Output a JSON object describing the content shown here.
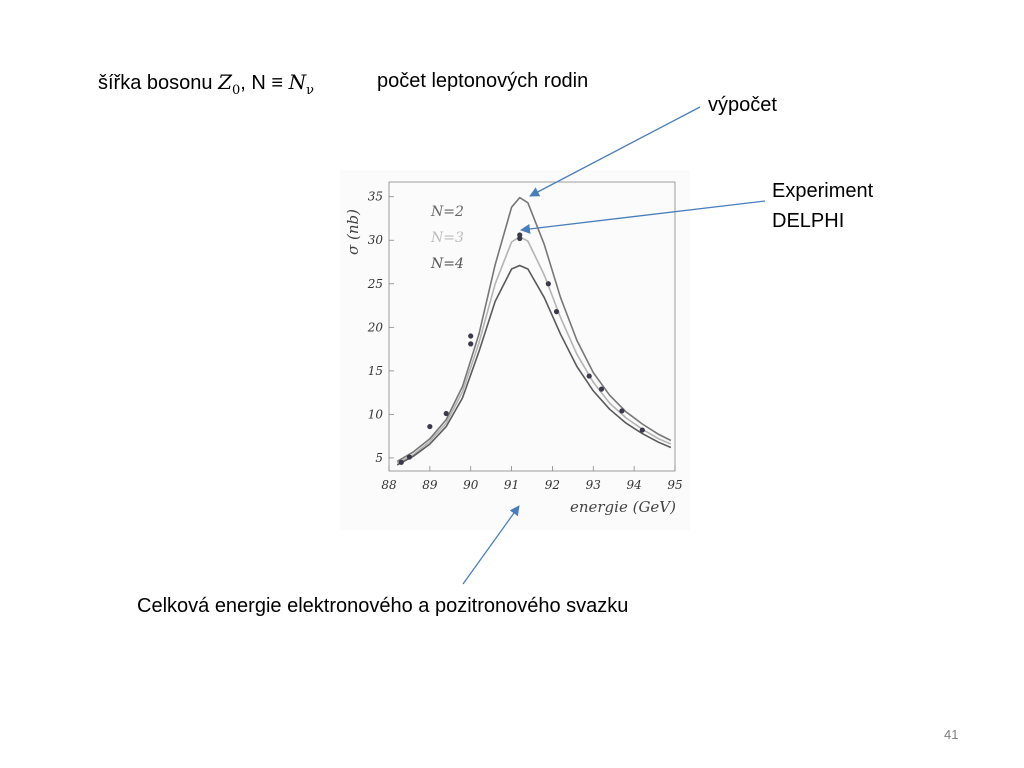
{
  "title": {
    "prefix": "šířka bosonu",
    "z_symbol": "Z",
    "z_sub": "0",
    "equiv": ", N ≡",
    "n_symbol": "N",
    "n_sub": "ν",
    "right": "počet leptonových rodin"
  },
  "labels": {
    "calc": "výpočet",
    "exp_line1": "Experiment",
    "exp_line2": "DELPHI",
    "energy": "Celková energie elektronového a pozitronového svazku"
  },
  "page_number": "41",
  "colors": {
    "arrow": "#4a7ebb",
    "curve": "#6a6a6a",
    "point": "#3a3a4a",
    "axis": "#888888"
  },
  "chart_data": {
    "type": "line",
    "xlabel": "energie (GeV)",
    "ylabel": "σ (nb)",
    "xlim": [
      88,
      95
    ],
    "ylim": [
      3.5,
      36
    ],
    "xticks": [
      88,
      89,
      90,
      91,
      92,
      93,
      94,
      95
    ],
    "yticks": [
      5,
      10,
      15,
      20,
      25,
      30,
      35
    ],
    "legend": [
      "N=2",
      "N=3",
      "N=4"
    ],
    "series": [
      {
        "name": "N=2",
        "x": [
          88.2,
          88.6,
          89.0,
          89.4,
          89.8,
          90.2,
          90.6,
          91.0,
          91.2,
          91.4,
          91.8,
          92.2,
          92.6,
          93.0,
          93.4,
          93.8,
          94.2,
          94.6,
          94.9
        ],
        "y": [
          4.6,
          5.7,
          7.2,
          9.4,
          13.2,
          19.2,
          27.2,
          33.8,
          34.9,
          34.3,
          29.5,
          23.4,
          18.5,
          14.8,
          12.2,
          10.3,
          8.9,
          7.7,
          7.0
        ]
      },
      {
        "name": "N=3",
        "x": [
          88.2,
          88.6,
          89.0,
          89.4,
          89.8,
          90.2,
          90.6,
          91.0,
          91.2,
          91.4,
          91.8,
          92.2,
          92.6,
          93.0,
          93.4,
          93.8,
          94.2,
          94.6,
          94.9
        ],
        "y": [
          4.4,
          5.4,
          6.9,
          9.0,
          12.6,
          18.2,
          25.0,
          29.8,
          30.4,
          29.9,
          26.0,
          21.1,
          16.9,
          13.7,
          11.3,
          9.6,
          8.3,
          7.2,
          6.6
        ]
      },
      {
        "name": "N=4",
        "x": [
          88.2,
          88.6,
          89.0,
          89.4,
          89.8,
          90.2,
          90.6,
          91.0,
          91.2,
          91.4,
          91.8,
          92.2,
          92.6,
          93.0,
          93.4,
          93.8,
          94.2,
          94.6,
          94.9
        ],
        "y": [
          4.2,
          5.2,
          6.6,
          8.6,
          11.9,
          17.2,
          23.0,
          26.7,
          27.1,
          26.7,
          23.4,
          19.2,
          15.5,
          12.7,
          10.6,
          9.0,
          7.8,
          6.8,
          6.2
        ]
      },
      {
        "name": "DELPHI",
        "type": "scatter",
        "x": [
          88.3,
          88.5,
          89.0,
          89.4,
          90.0,
          90.0,
          91.2,
          91.2,
          91.9,
          92.1,
          92.9,
          93.2,
          93.7,
          94.2
        ],
        "y": [
          4.5,
          5.1,
          8.6,
          10.1,
          19.0,
          18.1,
          30.6,
          30.2,
          25.0,
          21.8,
          14.4,
          12.9,
          10.4,
          8.2
        ]
      }
    ]
  }
}
